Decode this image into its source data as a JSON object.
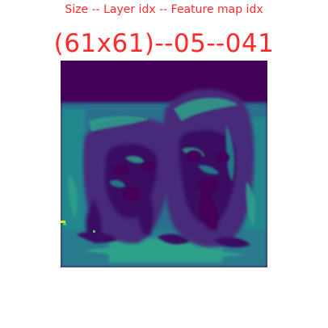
{
  "header": {
    "subtitle": "Size -- Layer idx -- Feature map idx",
    "title": "(61x61)--05--041"
  },
  "feature_map": {
    "colors": {
      "background": "#44015a",
      "dark": "#3a0e62",
      "mid_purple": "#472a7a",
      "teal_dark": "#2a6f8e",
      "teal": "#23888e",
      "teal_light": "#2ea18a",
      "green": "#4fc46a",
      "yellow": "#dde318"
    }
  }
}
